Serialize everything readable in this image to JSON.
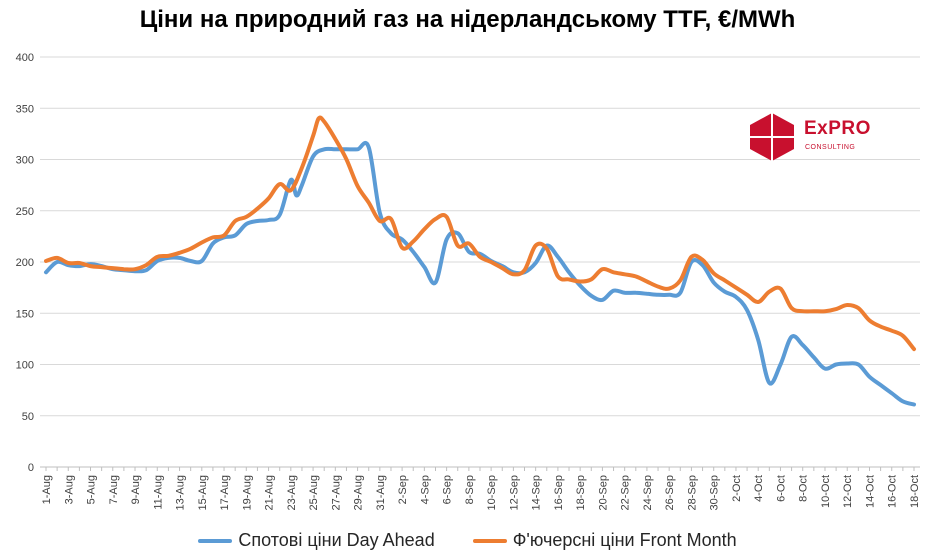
{
  "title": "Ціни на природний газ на нідерландському TTF, €/MWh",
  "logo": {
    "brand": "ExPRO",
    "subtitle": "CONSULTING"
  },
  "colors": {
    "spot": "#5b9bd5",
    "futures": "#ed7d31"
  },
  "chart_data": {
    "type": "line",
    "title": "Ціни на природний газ на нідерландському TTF, €/MWh",
    "xlabel": "",
    "ylabel": "",
    "ylim": [
      0,
      400
    ],
    "yticks": [
      0,
      50,
      100,
      150,
      200,
      250,
      300,
      350,
      400
    ],
    "grid": true,
    "legend_position": "bottom",
    "x_tick_labels": [
      "1-Aug",
      "3-Aug",
      "5-Aug",
      "7-Aug",
      "9-Aug",
      "11-Aug",
      "13-Aug",
      "15-Aug",
      "17-Aug",
      "19-Aug",
      "21-Aug",
      "23-Aug",
      "25-Aug",
      "27-Aug",
      "29-Aug",
      "31-Aug",
      "2-Sep",
      "4-Sep",
      "6-Sep",
      "8-Sep",
      "10-Sep",
      "12-Sep",
      "14-Sep",
      "16-Sep",
      "18-Sep",
      "20-Sep",
      "22-Sep",
      "24-Sep",
      "26-Sep",
      "28-Sep",
      "30-Sep",
      "2-Oct",
      "4-Oct",
      "6-Oct",
      "8-Oct",
      "10-Oct",
      "12-Oct",
      "14-Oct",
      "16-Oct",
      "18-Oct"
    ],
    "series": [
      {
        "name": "Спотові ціни Day Ahead",
        "points": [
          [
            "1-Aug",
            190
          ],
          [
            "2-Aug",
            200
          ],
          [
            "3-Aug",
            197
          ],
          [
            "4-Aug",
            196
          ],
          [
            "5-Aug",
            198
          ],
          [
            "6-Aug",
            196
          ],
          [
            "7-Aug",
            193
          ],
          [
            "8-Aug",
            192
          ],
          [
            "9-Aug",
            191
          ],
          [
            "10-Aug",
            192
          ],
          [
            "11-Aug",
            201
          ],
          [
            "12-Aug",
            204
          ],
          [
            "13-Aug",
            204
          ],
          [
            "14-Aug",
            201
          ],
          [
            "15-Aug",
            201
          ],
          [
            "16-Aug",
            218
          ],
          [
            "17-Aug",
            224
          ],
          [
            "18-Aug",
            226
          ],
          [
            "19-Aug",
            237
          ],
          [
            "20-Aug",
            240
          ],
          [
            "21-Aug",
            241
          ],
          [
            "22-Aug",
            246
          ],
          [
            "23-Aug",
            280
          ],
          [
            "23.5-Aug",
            265
          ],
          [
            "24-Aug",
            275
          ],
          [
            "25-Aug",
            303
          ],
          [
            "26-Aug",
            310
          ],
          [
            "27-Aug",
            310
          ],
          [
            "28-Aug",
            310
          ],
          [
            "29-Aug",
            310
          ],
          [
            "30-Aug",
            312
          ],
          [
            "31-Aug",
            248
          ],
          [
            "1-Sep",
            228
          ],
          [
            "2-Sep",
            222
          ],
          [
            "3-Sep",
            210
          ],
          [
            "4-Sep",
            195
          ],
          [
            "5-Sep",
            180
          ],
          [
            "6-Sep",
            222
          ],
          [
            "7-Sep",
            228
          ],
          [
            "8-Sep",
            210
          ],
          [
            "9-Sep",
            208
          ],
          [
            "10-Sep",
            201
          ],
          [
            "11-Sep",
            196
          ],
          [
            "12-Sep",
            190
          ],
          [
            "13-Sep",
            190
          ],
          [
            "14-Sep",
            199
          ],
          [
            "15-Sep",
            216
          ],
          [
            "16-Sep",
            205
          ],
          [
            "17-Sep",
            190
          ],
          [
            "18-Sep",
            177
          ],
          [
            "19-Sep",
            167
          ],
          [
            "20-Sep",
            163
          ],
          [
            "21-Sep",
            172
          ],
          [
            "22-Sep",
            170
          ],
          [
            "23-Sep",
            170
          ],
          [
            "24-Sep",
            169
          ],
          [
            "25-Sep",
            168
          ],
          [
            "26-Sep",
            168
          ],
          [
            "27-Sep",
            170
          ],
          [
            "28-Sep",
            200
          ],
          [
            "29-Sep",
            197
          ],
          [
            "30-Sep",
            180
          ],
          [
            "1-Oct",
            171
          ],
          [
            "2-Oct",
            166
          ],
          [
            "3-Oct",
            153
          ],
          [
            "4-Oct",
            124
          ],
          [
            "5-Oct",
            82
          ],
          [
            "6-Oct",
            100
          ],
          [
            "7-Oct",
            127
          ],
          [
            "8-Oct",
            119
          ],
          [
            "9-Oct",
            107
          ],
          [
            "10-Oct",
            96
          ],
          [
            "11-Oct",
            100
          ],
          [
            "12-Oct",
            101
          ],
          [
            "13-Oct",
            100
          ],
          [
            "14-Oct",
            88
          ],
          [
            "15-Oct",
            80
          ],
          [
            "16-Oct",
            72
          ],
          [
            "17-Oct",
            64
          ],
          [
            "18-Oct",
            61
          ]
        ]
      },
      {
        "name": "Ф'ючерсні ціни Front Month",
        "points": [
          [
            "1-Aug",
            201
          ],
          [
            "2-Aug",
            204
          ],
          [
            "3-Aug",
            199
          ],
          [
            "4-Aug",
            199
          ],
          [
            "5-Aug",
            196
          ],
          [
            "6-Aug",
            195
          ],
          [
            "7-Aug",
            194
          ],
          [
            "8-Aug",
            193
          ],
          [
            "9-Aug",
            193
          ],
          [
            "10-Aug",
            197
          ],
          [
            "11-Aug",
            205
          ],
          [
            "12-Aug",
            206
          ],
          [
            "13-Aug",
            209
          ],
          [
            "14-Aug",
            213
          ],
          [
            "15-Aug",
            219
          ],
          [
            "16-Aug",
            224
          ],
          [
            "17-Aug",
            226
          ],
          [
            "18-Aug",
            240
          ],
          [
            "19-Aug",
            244
          ],
          [
            "20-Aug",
            252
          ],
          [
            "21-Aug",
            262
          ],
          [
            "22-Aug",
            276
          ],
          [
            "23-Aug",
            270
          ],
          [
            "24-Aug",
            292
          ],
          [
            "25-Aug",
            323
          ],
          [
            "25.5-Aug",
            340
          ],
          [
            "26-Aug",
            337
          ],
          [
            "27-Aug",
            320
          ],
          [
            "28-Aug",
            300
          ],
          [
            "29-Aug",
            274
          ],
          [
            "30-Aug",
            258
          ],
          [
            "31-Aug",
            240
          ],
          [
            "1-Sep",
            242
          ],
          [
            "2-Sep",
            214
          ],
          [
            "3-Sep",
            220
          ],
          [
            "4-Sep",
            232
          ],
          [
            "5-Sep",
            242
          ],
          [
            "6-Sep",
            244
          ],
          [
            "7-Sep",
            216
          ],
          [
            "8-Sep",
            218
          ],
          [
            "9-Sep",
            205
          ],
          [
            "10-Sep",
            200
          ],
          [
            "11-Sep",
            194
          ],
          [
            "12-Sep",
            188
          ],
          [
            "13-Sep",
            192
          ],
          [
            "14-Sep",
            216
          ],
          [
            "15-Sep",
            213
          ],
          [
            "16-Sep",
            186
          ],
          [
            "17-Sep",
            183
          ],
          [
            "18-Sep",
            181
          ],
          [
            "19-Sep",
            183
          ],
          [
            "20-Sep",
            193
          ],
          [
            "21-Sep",
            190
          ],
          [
            "22-Sep",
            188
          ],
          [
            "23-Sep",
            186
          ],
          [
            "24-Sep",
            181
          ],
          [
            "25-Sep",
            176
          ],
          [
            "26-Sep",
            174
          ],
          [
            "27-Sep",
            182
          ],
          [
            "28-Sep",
            205
          ],
          [
            "29-Sep",
            202
          ],
          [
            "30-Sep",
            189
          ],
          [
            "1-Oct",
            182
          ],
          [
            "2-Oct",
            175
          ],
          [
            "3-Oct",
            168
          ],
          [
            "4-Oct",
            161
          ],
          [
            "5-Oct",
            171
          ],
          [
            "6-Oct",
            174
          ],
          [
            "7-Oct",
            155
          ],
          [
            "8-Oct",
            152
          ],
          [
            "9-Oct",
            152
          ],
          [
            "10-Oct",
            152
          ],
          [
            "11-Oct",
            154
          ],
          [
            "12-Oct",
            158
          ],
          [
            "13-Oct",
            155
          ],
          [
            "14-Oct",
            143
          ],
          [
            "15-Oct",
            137
          ],
          [
            "16-Oct",
            133
          ],
          [
            "17-Oct",
            128
          ],
          [
            "18-Oct",
            115
          ]
        ]
      }
    ]
  }
}
